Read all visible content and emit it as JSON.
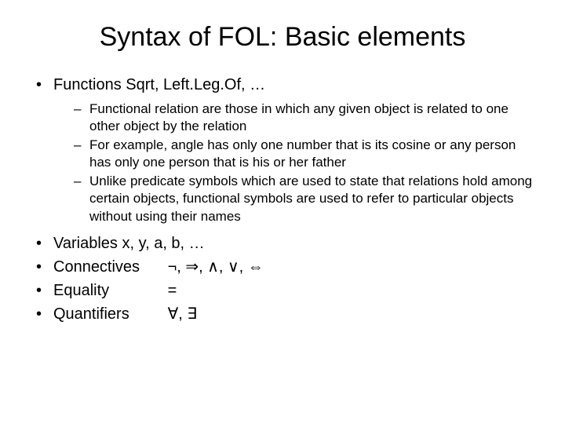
{
  "title": "Syntax of FOL: Basic elements",
  "functions": {
    "heading": "Functions  Sqrt, Left.Leg.Of, …",
    "sub": [
      "Functional relation are those in which any given object is related to one other object by the relation",
      "For example, angle has only one number that is its cosine or any person has only one person that is his or her father",
      "Unlike predicate symbols which are used to state that relations hold among certain objects, functional symbols are used to refer to particular objects without using their names"
    ]
  },
  "variables": "Variables  x, y, a, b, …",
  "connectives": {
    "label": "Connectives",
    "symbols": "¬, ⇒, ∧, ∨, ⇔"
  },
  "equality": {
    "label": "Equality",
    "symbols": "="
  },
  "quantifiers": {
    "label": "Quantifiers",
    "symbols": "∀, ∃"
  }
}
